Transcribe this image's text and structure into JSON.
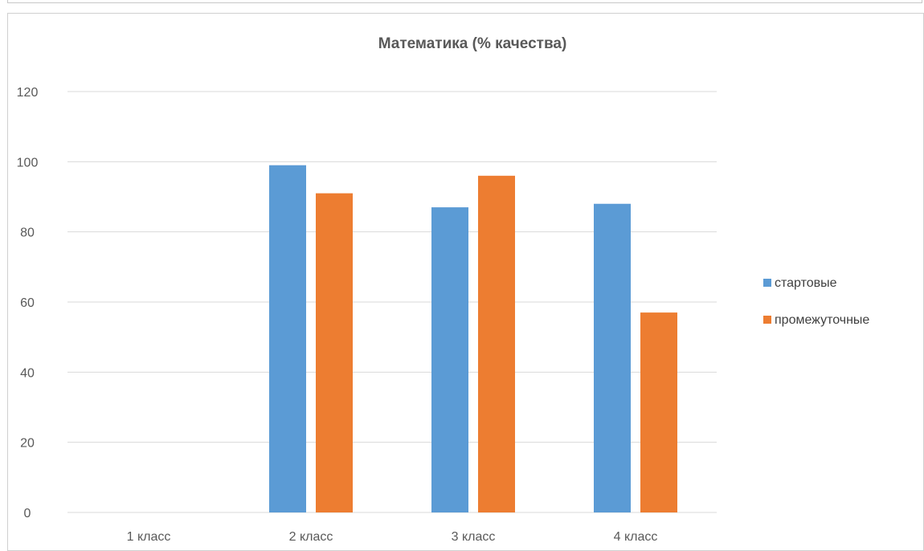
{
  "chart_data": {
    "type": "bar",
    "title": "Математика (% качества)",
    "categories": [
      "1 класс",
      "2 класс",
      "3 класс",
      "4 класс"
    ],
    "series": [
      {
        "name": "стартовые",
        "color": "#5b9bd5",
        "values": [
          0,
          99,
          87,
          88
        ]
      },
      {
        "name": "промежуточные",
        "color": "#ed7d31",
        "values": [
          0,
          91,
          96,
          57
        ]
      }
    ],
    "yticks": [
      0,
      20,
      40,
      60,
      80,
      100,
      120
    ],
    "ylim": [
      0,
      120
    ],
    "grid": true,
    "gridline_color": "#d9d9d9",
    "legend_position": "right"
  }
}
